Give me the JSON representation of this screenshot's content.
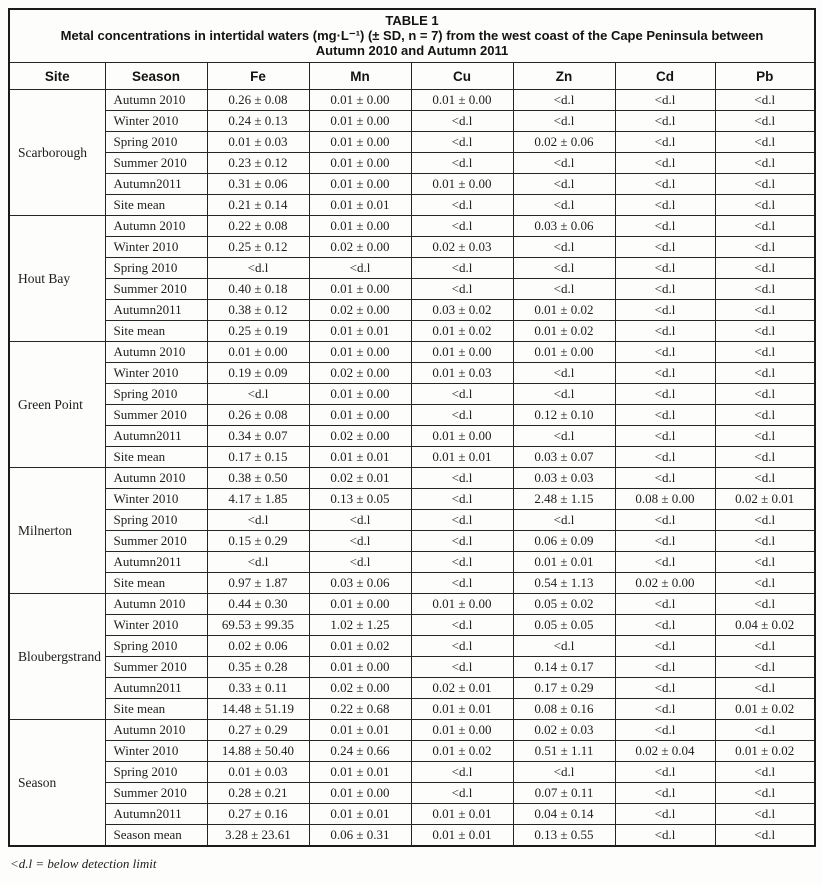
{
  "table": {
    "label": "TABLE 1",
    "caption_line1": "Metal concentrations in intertidal waters (mg·L⁻¹) (± SD, n = 7) from the west coast of the Cape Peninsula between",
    "caption_line2": "Autumn 2010 and Autumn 2011",
    "columns": [
      "Site",
      "Season",
      "Fe",
      "Mn",
      "Cu",
      "Zn",
      "Cd",
      "Pb"
    ],
    "below_detection_symbol": "<d.l",
    "groups": [
      {
        "site": "Scarborough",
        "rows": [
          {
            "season": "Autumn 2010",
            "values": [
              "0.26 ± 0.08",
              "0.01 ± 0.00",
              "0.01 ± 0.00",
              "<d.l",
              "<d.l",
              "<d.l"
            ]
          },
          {
            "season": "Winter 2010",
            "values": [
              "0.24 ± 0.13",
              "0.01 ± 0.00",
              "<d.l",
              "<d.l",
              "<d.l",
              "<d.l"
            ]
          },
          {
            "season": "Spring 2010",
            "values": [
              "0.01 ± 0.03",
              "0.01 ± 0.00",
              "<d.l",
              "0.02 ± 0.06",
              "<d.l",
              "<d.l"
            ]
          },
          {
            "season": "Summer 2010",
            "values": [
              "0.23 ± 0.12",
              "0.01 ± 0.00",
              "<d.l",
              "<d.l",
              "<d.l",
              "<d.l"
            ]
          },
          {
            "season": "Autumn2011",
            "values": [
              "0.31 ± 0.06",
              "0.01 ± 0.00",
              "0.01 ± 0.00",
              "<d.l",
              "<d.l",
              "<d.l"
            ]
          },
          {
            "season": "Site mean",
            "values": [
              "0.21 ± 0.14",
              "0.01 ± 0.01",
              "<d.l",
              "<d.l",
              "<d.l",
              "<d.l"
            ]
          }
        ]
      },
      {
        "site": "Hout Bay",
        "rows": [
          {
            "season": "Autumn 2010",
            "values": [
              "0.22 ± 0.08",
              "0.01 ± 0.00",
              "<d.l",
              "0.03 ± 0.06",
              "<d.l",
              "<d.l"
            ]
          },
          {
            "season": "Winter 2010",
            "values": [
              "0.25 ± 0.12",
              "0.02 ± 0.00",
              "0.02 ± 0.03",
              "<d.l",
              "<d.l",
              "<d.l"
            ]
          },
          {
            "season": "Spring 2010",
            "values": [
              "<d.l",
              "<d.l",
              "<d.l",
              "<d.l",
              "<d.l",
              "<d.l"
            ]
          },
          {
            "season": "Summer 2010",
            "values": [
              "0.40 ± 0.18",
              "0.01 ± 0.00",
              "<d.l",
              "<d.l",
              "<d.l",
              "<d.l"
            ]
          },
          {
            "season": "Autumn2011",
            "values": [
              "0.38 ± 0.12",
              "0.02 ± 0.00",
              "0.03 ± 0.02",
              "0.01 ± 0.02",
              "<d.l",
              "<d.l"
            ]
          },
          {
            "season": "Site mean",
            "values": [
              "0.25 ± 0.19",
              "0.01 ± 0.01",
              "0.01 ± 0.02",
              "0.01 ± 0.02",
              "<d.l",
              "<d.l"
            ]
          }
        ]
      },
      {
        "site": "Green Point",
        "rows": [
          {
            "season": "Autumn 2010",
            "values": [
              "0.01 ± 0.00",
              "0.01 ± 0.00",
              "0.01 ± 0.00",
              "0.01 ± 0.00",
              "<d.l",
              "<d.l"
            ]
          },
          {
            "season": "Winter 2010",
            "values": [
              "0.19 ± 0.09",
              "0.02 ± 0.00",
              "0.01 ± 0.03",
              "<d.l",
              "<d.l",
              "<d.l"
            ]
          },
          {
            "season": "Spring 2010",
            "values": [
              "<d.l",
              "0.01 ± 0.00",
              "<d.l",
              "<d.l",
              "<d.l",
              "<d.l"
            ]
          },
          {
            "season": "Summer 2010",
            "values": [
              "0.26 ± 0.08",
              "0.01 ± 0.00",
              "<d.l",
              "0.12 ± 0.10",
              "<d.l",
              "<d.l"
            ]
          },
          {
            "season": "Autumn2011",
            "values": [
              "0.34 ± 0.07",
              "0.02 ± 0.00",
              "0.01 ± 0.00",
              "<d.l",
              "<d.l",
              "<d.l"
            ]
          },
          {
            "season": "Site mean",
            "values": [
              "0.17 ± 0.15",
              "0.01 ± 0.01",
              "0.01 ± 0.01",
              "0.03 ± 0.07",
              "<d.l",
              "<d.l"
            ]
          }
        ]
      },
      {
        "site": "Milnerton",
        "rows": [
          {
            "season": "Autumn 2010",
            "values": [
              "0.38 ± 0.50",
              "0.02 ± 0.01",
              "<d.l",
              "0.03 ± 0.03",
              "<d.l",
              "<d.l"
            ]
          },
          {
            "season": "Winter 2010",
            "values": [
              "4.17 ± 1.85",
              "0.13 ± 0.05",
              "<d.l",
              "2.48 ± 1.15",
              "0.08 ± 0.00",
              "0.02 ± 0.01"
            ]
          },
          {
            "season": "Spring 2010",
            "values": [
              "<d.l",
              "<d.l",
              "<d.l",
              "<d.l",
              "<d.l",
              "<d.l"
            ]
          },
          {
            "season": "Summer 2010",
            "values": [
              "0.15 ± 0.29",
              "<d.l",
              "<d.l",
              "0.06 ± 0.09",
              "<d.l",
              "<d.l"
            ]
          },
          {
            "season": "Autumn2011",
            "values": [
              "<d.l",
              "<d.l",
              "<d.l",
              "0.01 ± 0.01",
              "<d.l",
              "<d.l"
            ]
          },
          {
            "season": "Site mean",
            "values": [
              "0.97 ± 1.87",
              "0.03 ± 0.06",
              "<d.l",
              "0.54 ± 1.13",
              "0.02 ± 0.00",
              "<d.l"
            ]
          }
        ]
      },
      {
        "site": "Bloubergstrand",
        "rows": [
          {
            "season": "Autumn 2010",
            "values": [
              "0.44 ± 0.30",
              "0.01 ± 0.00",
              "0.01 ± 0.00",
              "0.05 ± 0.02",
              "<d.l",
              "<d.l"
            ]
          },
          {
            "season": "Winter 2010",
            "values": [
              "69.53 ± 99.35",
              "1.02 ± 1.25",
              "<d.l",
              "0.05 ± 0.05",
              "<d.l",
              "0.04 ± 0.02"
            ]
          },
          {
            "season": "Spring 2010",
            "values": [
              "0.02 ± 0.06",
              "0.01 ± 0.02",
              "<d.l",
              "<d.l",
              "<d.l",
              "<d.l"
            ]
          },
          {
            "season": "Summer 2010",
            "values": [
              "0.35 ± 0.28",
              "0.01 ± 0.00",
              "<d.l",
              "0.14 ± 0.17",
              "<d.l",
              "<d.l"
            ]
          },
          {
            "season": "Autumn2011",
            "values": [
              "0.33 ± 0.11",
              "0.02 ± 0.00",
              "0.02 ± 0.01",
              "0.17 ± 0.29",
              "<d.l",
              "<d.l"
            ]
          },
          {
            "season": "Site mean",
            "values": [
              "14.48 ± 51.19",
              "0.22 ± 0.68",
              "0.01 ± 0.01",
              "0.08 ± 0.16",
              "<d.l",
              "0.01 ± 0.02"
            ]
          }
        ]
      },
      {
        "site": "Season",
        "rows": [
          {
            "season": "Autumn 2010",
            "values": [
              "0.27 ± 0.29",
              "0.01 ± 0.01",
              "0.01 ± 0.00",
              "0.02 ± 0.03",
              "<d.l",
              "<d.l"
            ]
          },
          {
            "season": "Winter 2010",
            "values": [
              "14.88 ± 50.40",
              "0.24 ± 0.66",
              "0.01 ± 0.02",
              "0.51 ± 1.11",
              "0.02 ± 0.04",
              "0.01 ± 0.02"
            ]
          },
          {
            "season": "Spring 2010",
            "values": [
              "0.01 ± 0.03",
              "0.01 ± 0.01",
              "<d.l",
              "<d.l",
              "<d.l",
              "<d.l"
            ]
          },
          {
            "season": "Summer 2010",
            "values": [
              "0.28 ± 0.21",
              "0.01 ± 0.00",
              "<d.l",
              "0.07 ± 0.11",
              "<d.l",
              "<d.l"
            ]
          },
          {
            "season": "Autumn2011",
            "values": [
              "0.27 ± 0.16",
              "0.01 ± 0.01",
              "0.01 ± 0.01",
              "0.04 ± 0.14",
              "<d.l",
              "<d.l"
            ]
          },
          {
            "season": "Season mean",
            "values": [
              "3.28 ± 23.61",
              "0.06 ± 0.31",
              "0.01 ± 0.01",
              "0.13 ± 0.55",
              "<d.l",
              "<d.l"
            ]
          }
        ]
      }
    ]
  },
  "footnote": "<d.l = below detection limit"
}
